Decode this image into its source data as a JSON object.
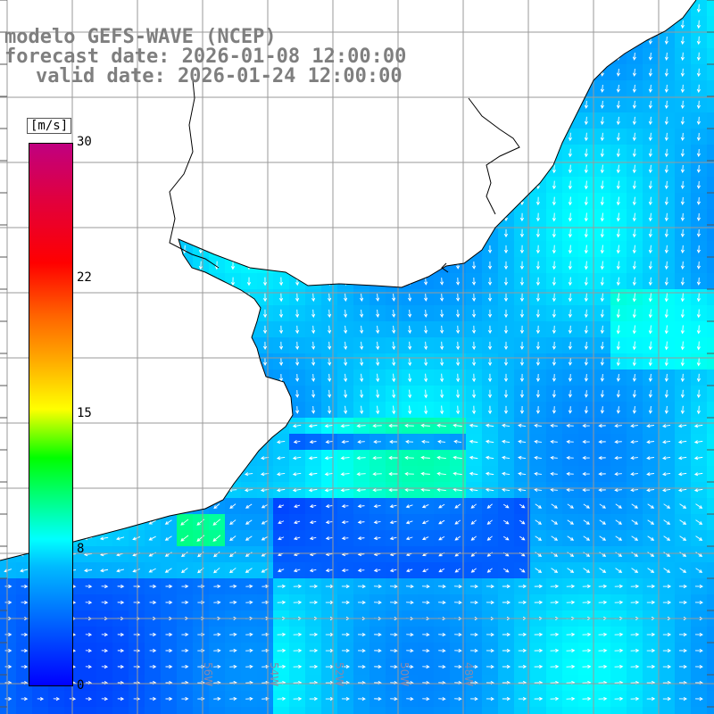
{
  "title": {
    "line1": "modelo GEFS-WAVE (NCEP)",
    "line2": "forecast date: 2026-01-08 12:00:00",
    "line3": "valid date: 2026-01-24 12:00:00"
  },
  "colorbar": {
    "units": "[m/s]",
    "min": 0,
    "max": 30,
    "ticks": [
      "30",
      "22",
      "15",
      "8",
      "0"
    ],
    "colors": {
      "low": "#0000ff",
      "mid": "#00ffff",
      "green": "#00ff00",
      "yellow": "#ffff00",
      "high": "#ff0000",
      "top": "#c00080"
    }
  },
  "map": {
    "land_color": "#ffffff",
    "grid_color": "#999999",
    "coast_color": "#000000",
    "arrow_color": "#ffffff"
  },
  "lon_labels": [
    "56W",
    "54W",
    "52W",
    "50W",
    "48W"
  ]
}
